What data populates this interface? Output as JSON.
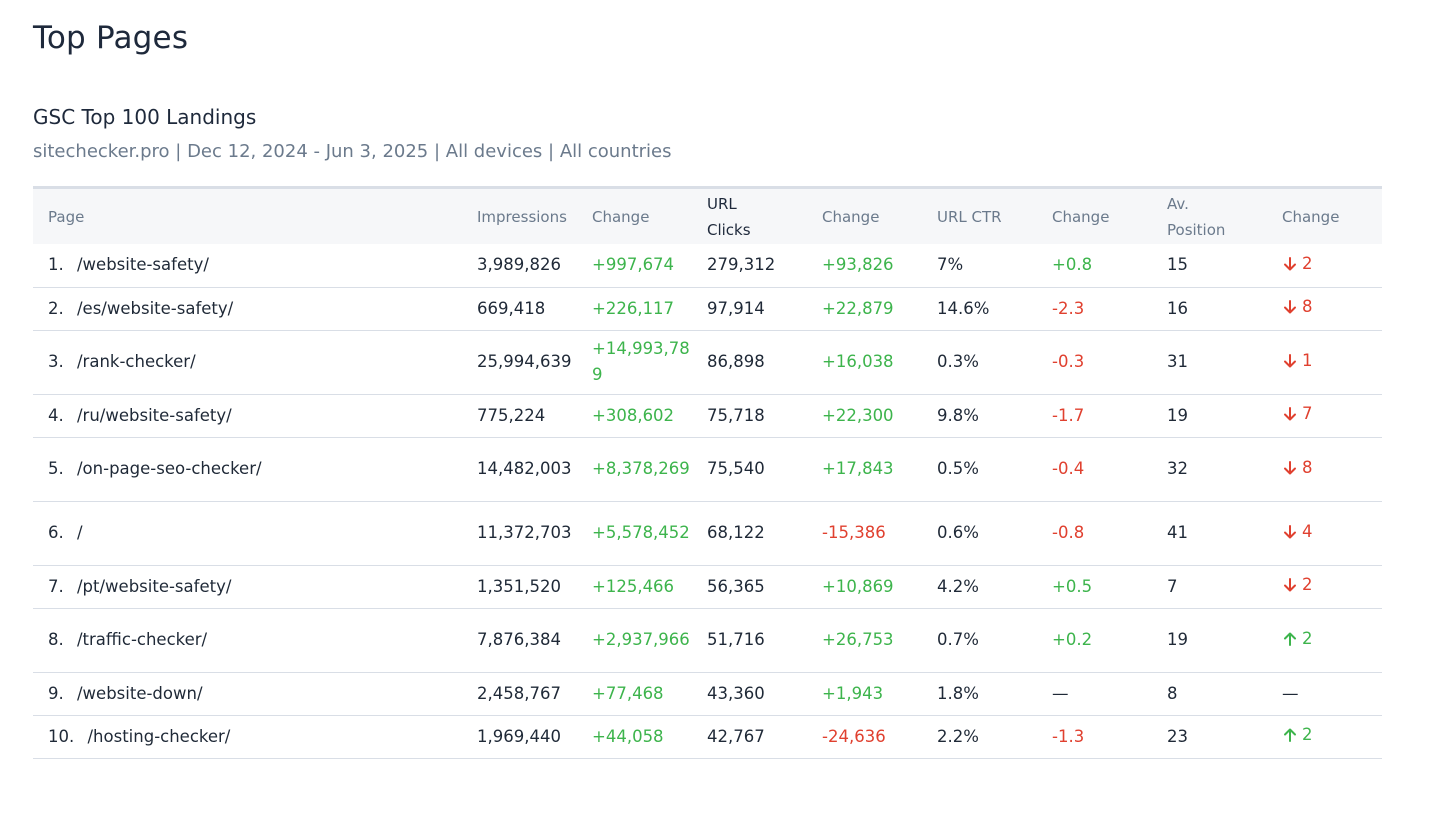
{
  "page_title": "Top Pages",
  "card": {
    "title": "GSC Top 100 Landings",
    "subtitle": "sitechecker.pro | Dec 12, 2024 - Jun 3, 2025 | All devices | All countries"
  },
  "table": {
    "headers": {
      "page": "Page",
      "impressions": "Impressions",
      "impressions_change": "Change",
      "clicks_line1": "URL",
      "clicks_line2": "Clicks",
      "clicks_change": "Change",
      "ctr": "URL CTR",
      "ctr_change": "Change",
      "position_line1": "Av.",
      "position_line2": "Position",
      "position_change": "Change"
    },
    "rows": [
      {
        "num": "1.",
        "page": "/website-safety/",
        "impressions": "3,989,826",
        "impressions_change": "+997,674",
        "clicks": "279,312",
        "clicks_change": "+93,826",
        "ctr": "7%",
        "ctr_change": "+0.8",
        "position": "15",
        "position_change": "2",
        "position_dir": "down"
      },
      {
        "num": "2.",
        "page": "/es/website-safety/",
        "impressions": "669,418",
        "impressions_change": "+226,117",
        "clicks": "97,914",
        "clicks_change": "+22,879",
        "ctr": "14.6%",
        "ctr_change": "-2.3",
        "position": "16",
        "position_change": "8",
        "position_dir": "down"
      },
      {
        "num": "3.",
        "page": "/rank-checker/",
        "impressions": "25,994,639",
        "impressions_change": "+14,993,789",
        "clicks": "86,898",
        "clicks_change": "+16,038",
        "ctr": "0.3%",
        "ctr_change": "-0.3",
        "position": "31",
        "position_change": "1",
        "position_dir": "down"
      },
      {
        "num": "4.",
        "page": "/ru/website-safety/",
        "impressions": "775,224",
        "impressions_change": "+308,602",
        "clicks": "75,718",
        "clicks_change": "+22,300",
        "ctr": "9.8%",
        "ctr_change": "-1.7",
        "position": "19",
        "position_change": "7",
        "position_dir": "down"
      },
      {
        "num": "5.",
        "page": "/on-page-seo-checker/",
        "impressions": "14,482,003",
        "impressions_change": "+8,378,269",
        "clicks": "75,540",
        "clicks_change": "+17,843",
        "ctr": "0.5%",
        "ctr_change": "-0.4",
        "position": "32",
        "position_change": "8",
        "position_dir": "down"
      },
      {
        "num": "6.",
        "page": "/",
        "impressions": "11,372,703",
        "impressions_change": "+5,578,452",
        "clicks": "68,122",
        "clicks_change": "-15,386",
        "ctr": "0.6%",
        "ctr_change": "-0.8",
        "position": "41",
        "position_change": "4",
        "position_dir": "down"
      },
      {
        "num": "7.",
        "page": "/pt/website-safety/",
        "impressions": "1,351,520",
        "impressions_change": "+125,466",
        "clicks": "56,365",
        "clicks_change": "+10,869",
        "ctr": "4.2%",
        "ctr_change": "+0.5",
        "position": "7",
        "position_change": "2",
        "position_dir": "down"
      },
      {
        "num": "8.",
        "page": "/traffic-checker/",
        "impressions": "7,876,384",
        "impressions_change": "+2,937,966",
        "clicks": "51,716",
        "clicks_change": "+26,753",
        "ctr": "0.7%",
        "ctr_change": "+0.2",
        "position": "19",
        "position_change": "2",
        "position_dir": "up"
      },
      {
        "num": "9.",
        "page": "/website-down/",
        "impressions": "2,458,767",
        "impressions_change": "+77,468",
        "clicks": "43,360",
        "clicks_change": "+1,943",
        "ctr": "1.8%",
        "ctr_change": "—",
        "position": "8",
        "position_change": "—",
        "position_dir": "none"
      },
      {
        "num": "10.",
        "page": "/hosting-checker/",
        "impressions": "1,969,440",
        "impressions_change": "+44,058",
        "clicks": "42,767",
        "clicks_change": "-24,636",
        "ctr": "2.2%",
        "ctr_change": "-1.3",
        "position": "23",
        "position_change": "2",
        "position_dir": "up"
      }
    ]
  },
  "colors": {
    "positive": "#3db44c",
    "negative": "#e0402f",
    "neutral": "#1f2937"
  },
  "icons": {
    "down": "arrow-down-icon",
    "up": "arrow-up-icon"
  }
}
